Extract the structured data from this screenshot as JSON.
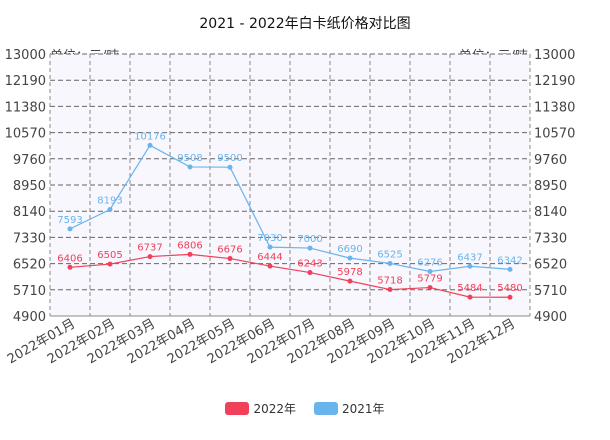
{
  "chart_data": {
    "type": "line",
    "title": "2021 - 2022年白卡纸价格对比图",
    "unit_left": "单位：元/吨",
    "unit_right": "单位：元/吨",
    "categories": [
      "2022年01月",
      "2022年02月",
      "2022年03月",
      "2022年04月",
      "2022年05月",
      "2022年06月",
      "2022年07月",
      "2022年08月",
      "2022年09月",
      "2022年10月",
      "2022年11月",
      "2022年12月"
    ],
    "y_ticks": [
      4900,
      5710,
      6520,
      7330,
      8140,
      8950,
      9760,
      10570,
      11380,
      12190,
      13000
    ],
    "ylim": [
      4900,
      13000
    ],
    "grid": true,
    "legend_position": "bottom",
    "series": [
      {
        "name": "2022年",
        "color": "#f0405a",
        "values": [
          6406,
          6505,
          6737,
          6806,
          6676,
          6444,
          6243,
          5978,
          5718,
          5779,
          5484,
          5480
        ]
      },
      {
        "name": "2021年",
        "color": "#6ab4ee",
        "values": [
          7593,
          8193,
          10176,
          9508,
          9500,
          7030,
          7000,
          6690,
          6525,
          6276,
          6437,
          6342
        ]
      }
    ]
  }
}
